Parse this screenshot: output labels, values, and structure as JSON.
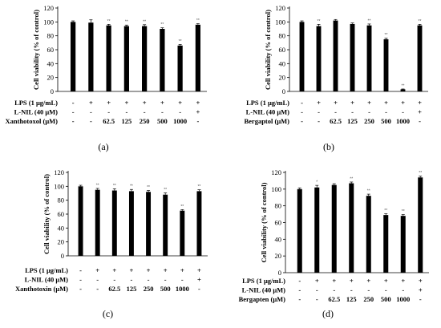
{
  "chart_data": [
    {
      "type": "bar",
      "panel_label": "(a)",
      "ylabel": "Cell viability (% of control)",
      "ylim": [
        0,
        120
      ],
      "yticks": [
        0,
        20,
        40,
        60,
        80,
        100,
        120
      ],
      "values": [
        100,
        99,
        95,
        94,
        94,
        90,
        66,
        96
      ],
      "errors": [
        1.5,
        4,
        1.5,
        1.5,
        2,
        1.5,
        1.5,
        1.5
      ],
      "significance": [
        "",
        "",
        "**",
        "**",
        "**",
        "**",
        "**",
        "**"
      ],
      "rows": [
        {
          "label": "LPS (1 μg/mL)",
          "cells": [
            "-",
            "+",
            "+",
            "+",
            "+",
            "+",
            "+",
            "+"
          ]
        },
        {
          "label": "L-NIL (40 μM)",
          "cells": [
            "-",
            "-",
            "-",
            "-",
            "-",
            "-",
            "-",
            "+"
          ]
        },
        {
          "label": "Xanthotoxol (μM)",
          "cells": [
            "-",
            "-",
            "62.5",
            "125",
            "250",
            "500",
            "1000",
            "-"
          ]
        }
      ]
    },
    {
      "type": "bar",
      "panel_label": "(b)",
      "ylabel": "Cell viability (% of control)",
      "ylim": [
        0,
        120
      ],
      "yticks": [
        0,
        20,
        40,
        60,
        80,
        100,
        120
      ],
      "values": [
        100,
        94,
        102,
        97,
        95,
        75,
        3,
        95
      ],
      "errors": [
        1.5,
        2.5,
        1.5,
        1.5,
        2,
        1.5,
        0.5,
        1.5
      ],
      "significance": [
        "",
        "**",
        "",
        "",
        "**",
        "**",
        "**",
        "**"
      ],
      "rows": [
        {
          "label": "LPS (1 μg/mL)",
          "cells": [
            "-",
            "+",
            "+",
            "+",
            "+",
            "+",
            "+",
            "+"
          ]
        },
        {
          "label": "L-NIL (40 μM)",
          "cells": [
            "-",
            "-",
            "-",
            "-",
            "-",
            "-",
            "-",
            "+"
          ]
        },
        {
          "label": "Bergaptol (μM)",
          "cells": [
            "-",
            "-",
            "62.5",
            "125",
            "250",
            "500",
            "1000",
            "-"
          ]
        }
      ]
    },
    {
      "type": "bar",
      "panel_label": "(c)",
      "ylabel": "Cell viability (% of control)",
      "ylim": [
        0,
        120
      ],
      "yticks": [
        0,
        20,
        40,
        60,
        80,
        100,
        120
      ],
      "values": [
        100,
        95,
        94,
        93,
        92,
        88,
        65,
        93
      ],
      "errors": [
        1.5,
        2,
        2.5,
        2.5,
        2,
        2.5,
        1.5,
        2
      ],
      "significance": [
        "",
        "**",
        "**",
        "**",
        "**",
        "**",
        "**",
        "**"
      ],
      "rows": [
        {
          "label": "LPS (1 μg/mL)",
          "cells": [
            "-",
            "+",
            "+",
            "+",
            "+",
            "+",
            "+",
            "+"
          ]
        },
        {
          "label": "L-NIL (40 μM)",
          "cells": [
            "-",
            "-",
            "-",
            "-",
            "-",
            "-",
            "-",
            "+"
          ]
        },
        {
          "label": "Xanthotoxin (μM)",
          "cells": [
            "-",
            "-",
            "62.5",
            "125",
            "250",
            "500",
            "1000",
            "-"
          ]
        }
      ]
    },
    {
      "type": "bar",
      "panel_label": "(d)",
      "ylabel": "Cell viability (% of control)",
      "ylim": [
        0,
        120
      ],
      "yticks": [
        0,
        20,
        40,
        60,
        80,
        100,
        120
      ],
      "values": [
        100,
        102,
        105,
        107,
        92,
        69,
        68,
        114
      ],
      "errors": [
        1.5,
        2.5,
        1.5,
        1.5,
        2,
        1.5,
        1.5,
        1.5
      ],
      "significance": [
        "",
        "*",
        "",
        "**",
        "**",
        "**",
        "**",
        "**"
      ],
      "rows": [
        {
          "label": "LPS (1 μg/mL)",
          "cells": [
            "-",
            "+",
            "+",
            "+",
            "+",
            "+",
            "+",
            "+"
          ]
        },
        {
          "label": "L-NIL (40 μM)",
          "cells": [
            "-",
            "-",
            "-",
            "-",
            "-",
            "-",
            "-",
            "+"
          ]
        },
        {
          "label": "Bergapten (μM)",
          "cells": [
            "-",
            "-",
            "62.5",
            "125",
            "250",
            "500",
            "1000",
            "-"
          ]
        }
      ]
    }
  ]
}
